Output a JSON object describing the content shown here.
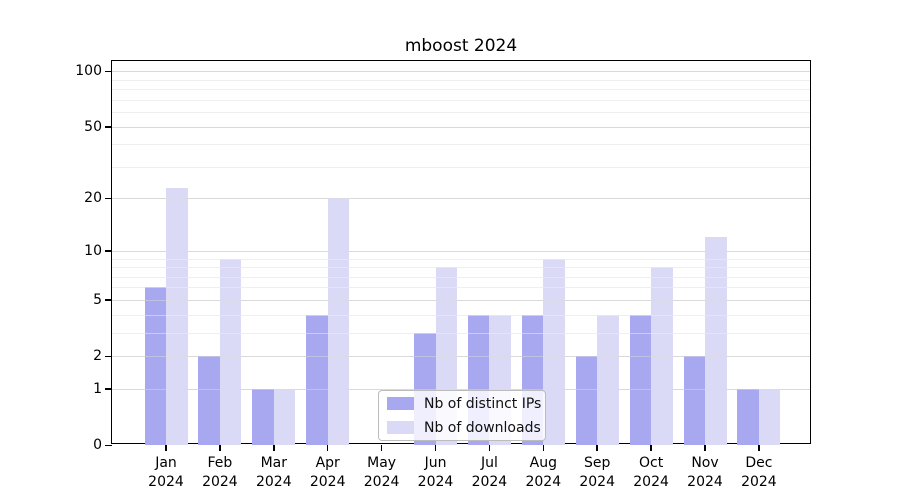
{
  "title": "mboost 2024",
  "colors": {
    "distinct_ips_bar": "#a8a8f0",
    "downloads_bar": "#dadaf7",
    "major_grid": "#d9d9d9",
    "minor_grid": "#efefef",
    "axis": "#000000",
    "legend_border": "#bcbcbc"
  },
  "legend": {
    "items": [
      {
        "label": "Nb of distinct IPs",
        "color": "#a8a8f0"
      },
      {
        "label": "Nb of downloads",
        "color": "#dadaf7"
      }
    ]
  },
  "axes": {
    "y_tick_labels": [
      "100",
      "50",
      "20",
      "10",
      "5",
      "2",
      "1",
      "0"
    ],
    "x_tick_line2": "2024",
    "x_tick_months": [
      "Jan",
      "Feb",
      "Mar",
      "Apr",
      "May",
      "Jun",
      "Jul",
      "Aug",
      "Sep",
      "Oct",
      "Nov",
      "Dec"
    ]
  },
  "chart_data": {
    "type": "bar",
    "title": "mboost 2024",
    "categories": [
      "Jan 2024",
      "Feb 2024",
      "Mar 2024",
      "Apr 2024",
      "May 2024",
      "Jun 2024",
      "Jul 2024",
      "Aug 2024",
      "Sep 2024",
      "Oct 2024",
      "Nov 2024",
      "Dec 2024"
    ],
    "series": [
      {
        "name": "Nb of distinct IPs",
        "color": "#a8a8f0",
        "values": [
          6,
          2,
          1,
          4,
          0,
          3,
          4,
          4,
          2,
          4,
          2,
          1
        ]
      },
      {
        "name": "Nb of downloads",
        "color": "#dadaf7",
        "values": [
          23,
          9,
          1,
          20,
          0,
          8,
          4,
          9,
          4,
          8,
          12,
          1
        ]
      }
    ],
    "xlabel": "",
    "ylabel": "",
    "yscale": "log1p",
    "ylim": [
      0,
      113
    ],
    "yticks": [
      0,
      1,
      2,
      5,
      10,
      20,
      50,
      100
    ],
    "yticks_minor": [
      3,
      4,
      6,
      7,
      8,
      9,
      30,
      40,
      60,
      70,
      80,
      90
    ],
    "grid": "horizontal",
    "legend_position": "lower center"
  }
}
